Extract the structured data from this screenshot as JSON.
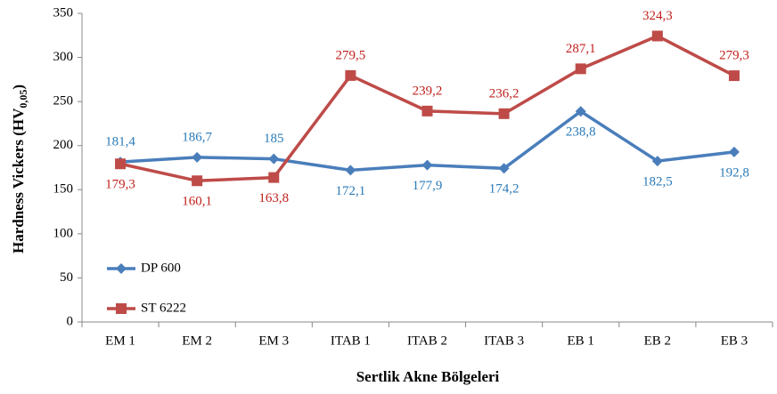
{
  "chart_data": {
    "type": "line",
    "y_label": "Hardness  Vickers (HV",
    "y_label_sub": "0,05",
    "y_label_end": ")",
    "x_label": "Sertlik Akne Bölgeleri",
    "categories": [
      "EM 1",
      "EM 2",
      "EM 3",
      "ITAB 1",
      "ITAB 2",
      "ITAB 3",
      "EB 1",
      "EB 2",
      "EB 3"
    ],
    "series": [
      {
        "name": "DP 600",
        "color": "#4a7ebb",
        "label_color": "#2a7ab8",
        "marker": "diamond",
        "values": [
          181.4,
          186.7,
          185,
          172.1,
          177.9,
          174.2,
          238.8,
          182.5,
          192.8
        ],
        "value_labels": [
          "181,4",
          "186,7",
          "185",
          "172,1",
          "177,9",
          "174,2",
          "238,8",
          "182,5",
          "192,8"
        ]
      },
      {
        "name": "ST 6222",
        "color": "#be4b48",
        "label_color": "#c0201c",
        "marker": "square",
        "values": [
          179.3,
          160.1,
          163.8,
          279.5,
          239.2,
          236.2,
          287.1,
          324.3,
          279.3
        ],
        "value_labels": [
          "179,3",
          "160,1",
          "163,8",
          "279,5",
          "239,2",
          "236,2",
          "287,1",
          "324,3",
          "279,3"
        ]
      }
    ],
    "ylim": [
      0,
      350
    ],
    "yticks": [
      0,
      50,
      100,
      150,
      200,
      250,
      300,
      350
    ],
    "grid": false,
    "legend": "lower left"
  }
}
